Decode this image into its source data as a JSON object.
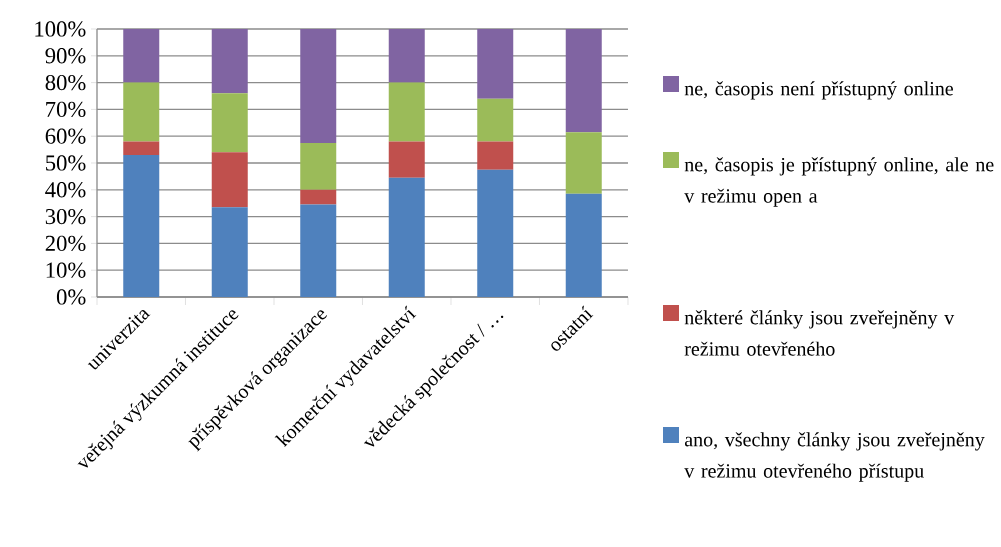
{
  "chart_data": {
    "type": "bar",
    "stacked": true,
    "categories": [
      "univerzita",
      "veřejná výzkumná instituce",
      "příspěvková organizace",
      "komerční vydavatelství",
      "vědecká společnost / …",
      "ostatní"
    ],
    "series": [
      {
        "name": "ano, všechny články jsou zveřejněny v režimu otevřeného přístupu",
        "color": "#4f81bd",
        "values": [
          53,
          33.5,
          34.5,
          44.5,
          47.5,
          38.5
        ]
      },
      {
        "name": "některé články jsou zveřejněny v režimu otevřeného",
        "color": "#c0504d",
        "values": [
          5,
          20.5,
          5.5,
          13.5,
          10.5,
          0
        ]
      },
      {
        "name": "ne, časopis je přístupný online, ale ne v režimu open a",
        "color": "#9bbb59",
        "values": [
          22,
          22,
          17.5,
          22,
          16,
          23
        ]
      },
      {
        "name": "ne, časopis není přístupný online",
        "color": "#8064a2",
        "values": [
          20,
          24,
          42.5,
          20,
          26,
          38.5
        ]
      }
    ],
    "ylim": [
      0,
      100
    ],
    "yticks": [
      {
        "value": 0,
        "label": "0%"
      },
      {
        "value": 10,
        "label": "10%"
      },
      {
        "value": 20,
        "label": "20%"
      },
      {
        "value": 30,
        "label": "30%"
      },
      {
        "value": 40,
        "label": "40%"
      },
      {
        "value": 50,
        "label": "50%"
      },
      {
        "value": 60,
        "label": "60%"
      },
      {
        "value": 70,
        "label": "70%"
      },
      {
        "value": 80,
        "label": "80%"
      },
      {
        "value": 90,
        "label": "90%"
      },
      {
        "value": 100,
        "label": "100%"
      }
    ],
    "grid": "y",
    "legend": "right"
  }
}
